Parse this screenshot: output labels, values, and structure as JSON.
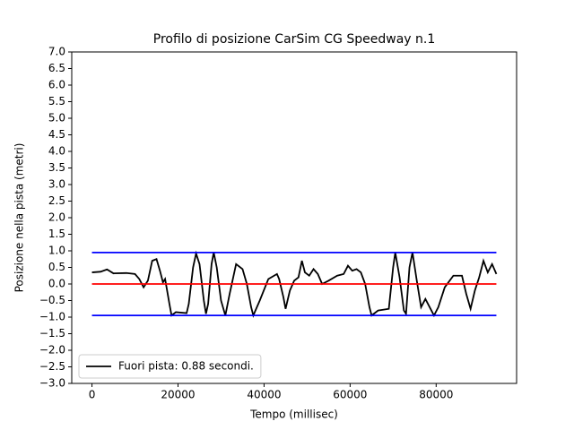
{
  "chart_data": {
    "type": "line",
    "title": "Profilo di posizione CarSim CG Speedway n.1",
    "xlabel": "Tempo (millisec)",
    "ylabel": "Posizione nella pista (metri)",
    "xlim": [
      -4700,
      98700
    ],
    "ylim": [
      -3,
      7
    ],
    "xticks": [
      0,
      20000,
      40000,
      60000,
      80000
    ],
    "yticks": [
      {
        "value": 7,
        "label": "7.0"
      },
      {
        "value": 6.5,
        "label": "6.5"
      },
      {
        "value": 6,
        "label": "6.0"
      },
      {
        "value": 5.5,
        "label": "5.5"
      },
      {
        "value": 5,
        "label": "5.0"
      },
      {
        "value": 4.5,
        "label": "4.5"
      },
      {
        "value": 4,
        "label": "4.0"
      },
      {
        "value": 3.5,
        "label": "3.5"
      },
      {
        "value": 3,
        "label": "3.0"
      },
      {
        "value": 2.5,
        "label": "2.5"
      },
      {
        "value": 2,
        "label": "2.0"
      },
      {
        "value": 1.5,
        "label": "1.5"
      },
      {
        "value": 1,
        "label": "1.0"
      },
      {
        "value": 0.5,
        "label": "0.5"
      },
      {
        "value": 0,
        "label": "0.0"
      },
      {
        "value": -0.5,
        "label": "−0.5"
      },
      {
        "value": -1,
        "label": "−1.0"
      },
      {
        "value": -1.5,
        "label": "−1.5"
      },
      {
        "value": -2,
        "label": "−2.0"
      },
      {
        "value": -2.5,
        "label": "−2.5"
      },
      {
        "value": -3,
        "label": "−3.0"
      }
    ],
    "legend": "lower left",
    "series": [
      {
        "name": "Fuori pista: 0.88 secondi.",
        "color": "#000000",
        "x": [
          0,
          2000,
          3500,
          5000,
          8000,
          10000,
          11000,
          12000,
          13000,
          14000,
          15000,
          15800,
          16500,
          17000,
          18000,
          18500,
          19500,
          22000,
          22500,
          23500,
          24200,
          25000,
          26000,
          26500,
          27000,
          27800,
          28300,
          29000,
          30000,
          31000,
          32000,
          33500,
          35000,
          36000,
          37000,
          37500,
          39000,
          41000,
          43000,
          43500,
          44500,
          45000,
          46000,
          47000,
          48000,
          48800,
          49500,
          50500,
          51500,
          52500,
          53500,
          55000,
          57000,
          58500,
          59500,
          60500,
          61500,
          62500,
          63500,
          64500,
          65000,
          66500,
          69000,
          70000,
          70500,
          71500,
          72500,
          73000,
          73800,
          74500,
          75500,
          76500,
          77500,
          78500,
          79500,
          80500,
          82000,
          84000,
          86000,
          87000,
          88000,
          89000,
          90000,
          91000,
          92000,
          93000,
          94000
        ],
        "values": [
          0.35,
          0.37,
          0.44,
          0.32,
          0.33,
          0.3,
          0.15,
          -0.1,
          0.1,
          0.7,
          0.75,
          0.4,
          0.05,
          0.15,
          -0.6,
          -0.95,
          -0.85,
          -0.88,
          -0.6,
          0.5,
          0.92,
          0.6,
          -0.5,
          -0.9,
          -0.6,
          0.6,
          0.95,
          0.5,
          -0.5,
          -0.95,
          -0.3,
          0.6,
          0.45,
          0.0,
          -0.7,
          -0.95,
          -0.5,
          0.15,
          0.3,
          0.15,
          -0.4,
          -0.75,
          -0.2,
          0.1,
          0.2,
          0.7,
          0.35,
          0.25,
          0.45,
          0.3,
          0.0,
          0.1,
          0.25,
          0.3,
          0.55,
          0.4,
          0.45,
          0.35,
          0.0,
          -0.7,
          -0.95,
          -0.8,
          -0.75,
          0.5,
          0.95,
          0.2,
          -0.8,
          -0.9,
          0.5,
          0.95,
          0.1,
          -0.7,
          -0.45,
          -0.7,
          -0.95,
          -0.7,
          -0.1,
          0.25,
          0.25,
          -0.3,
          -0.75,
          -0.2,
          0.2,
          0.7,
          0.35,
          0.6,
          0.3
        ]
      },
      {
        "color": "#0000ff",
        "x": [
          0,
          94000
        ],
        "values": [
          0.95,
          0.95
        ]
      },
      {
        "color": "#0000ff",
        "x": [
          0,
          94000
        ],
        "values": [
          -0.95,
          -0.95
        ]
      },
      {
        "color": "#ff0000",
        "x": [
          0,
          94000
        ],
        "values": [
          0,
          0
        ]
      }
    ]
  }
}
